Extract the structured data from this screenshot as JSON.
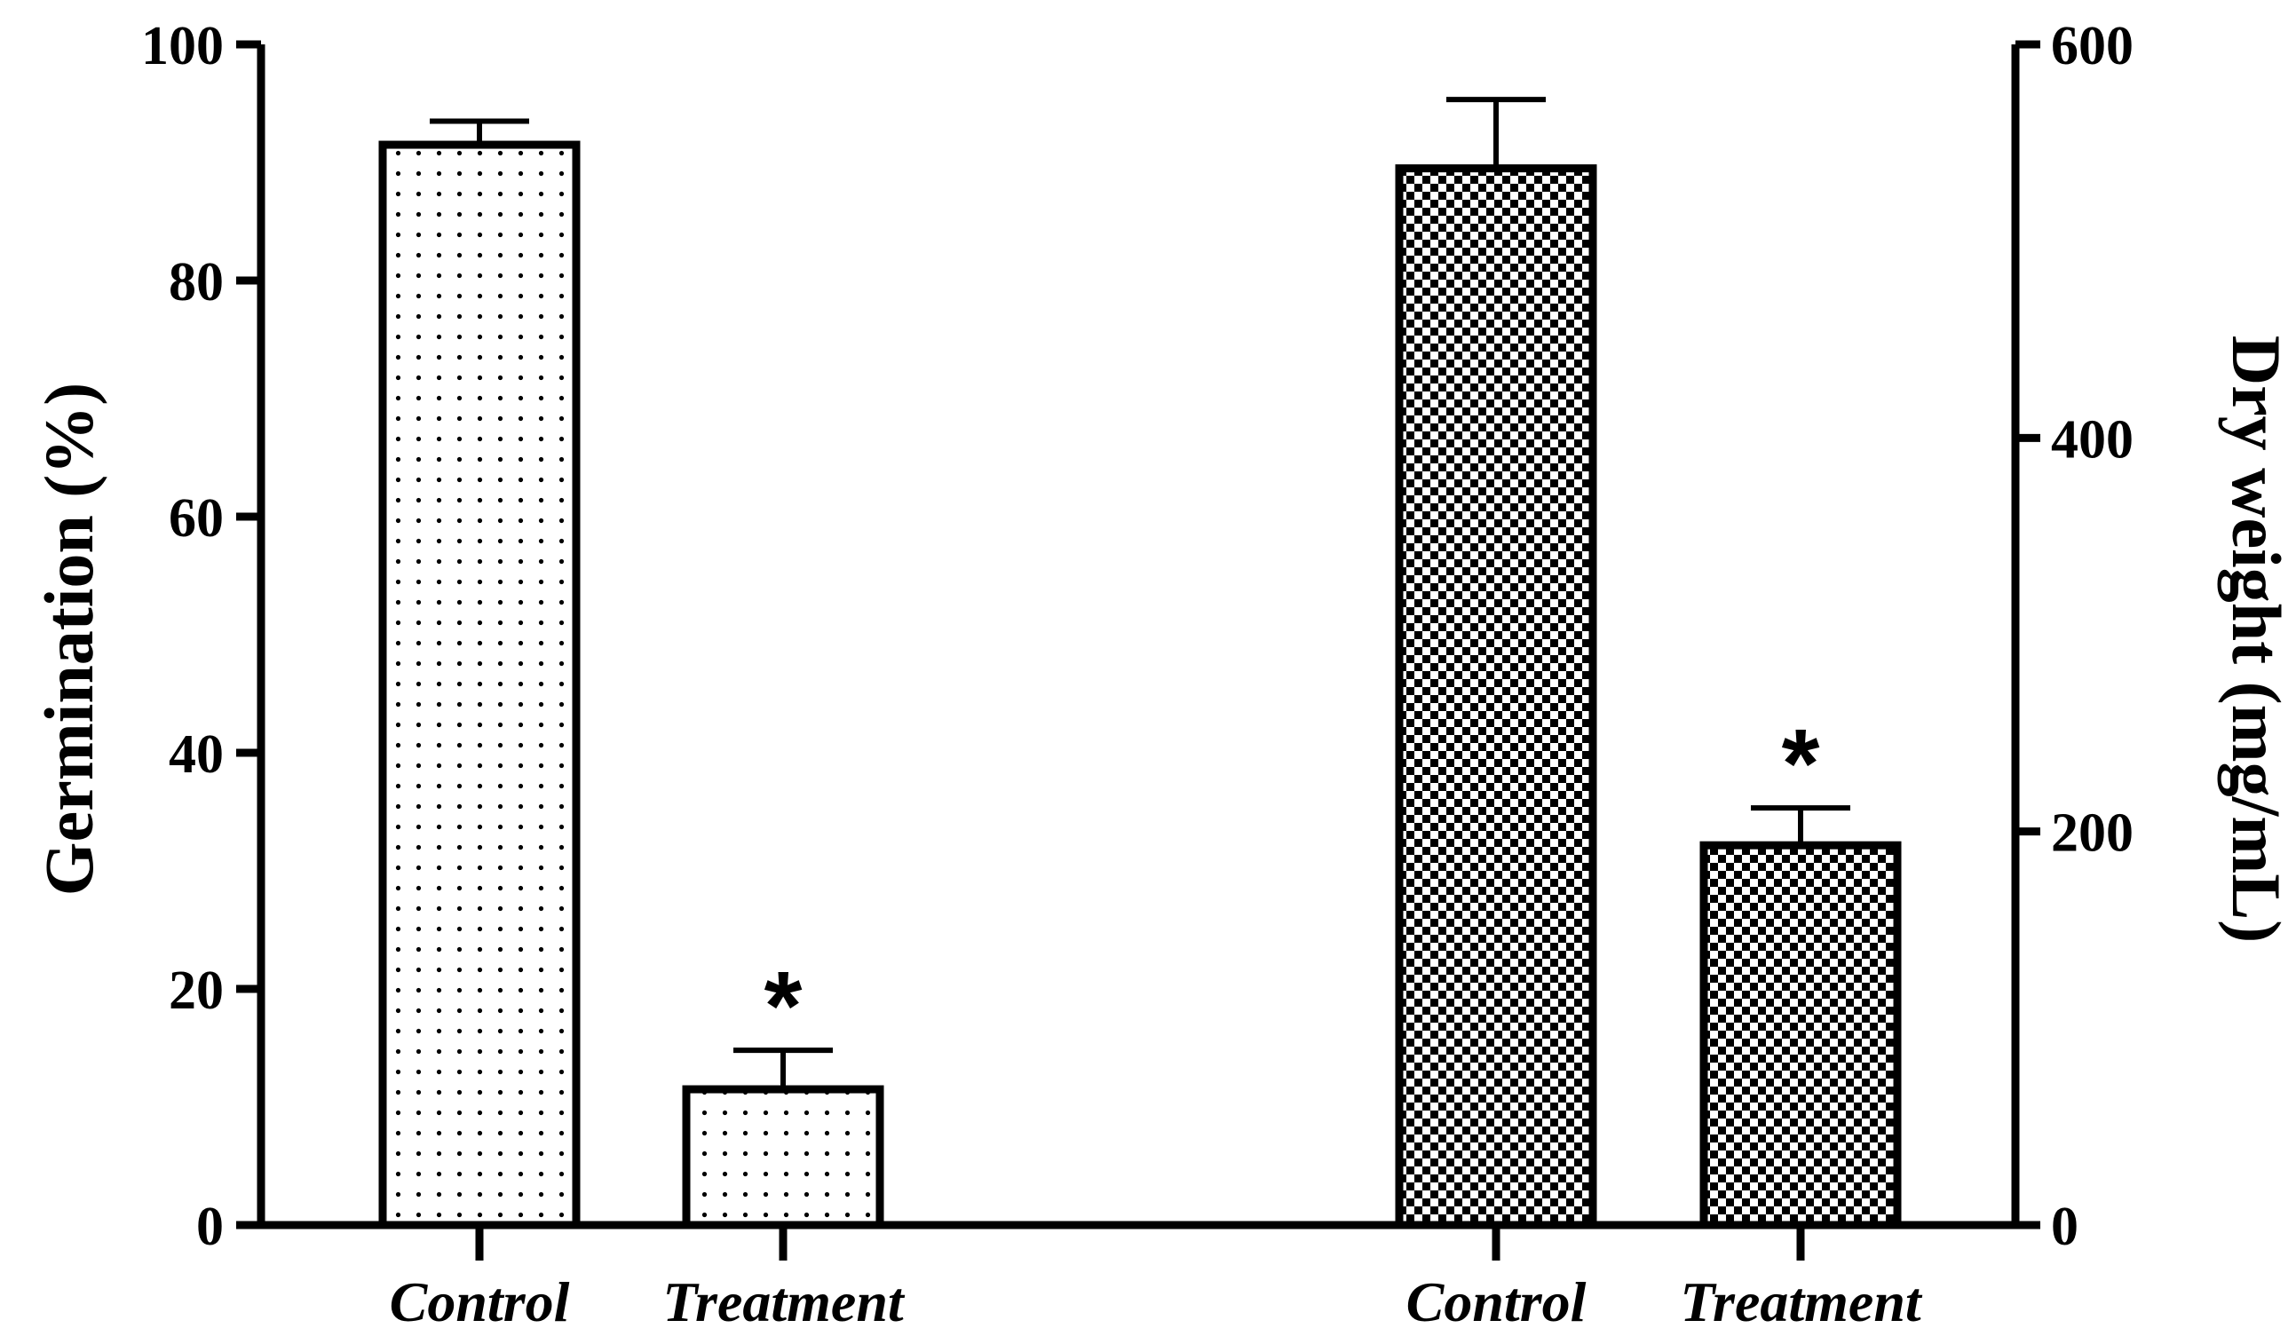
{
  "chart_data": {
    "type": "bar",
    "left_axis": {
      "title": "Germination (%)",
      "ylim": [
        0,
        100
      ],
      "ticks": [
        "0",
        "20",
        "40",
        "60",
        "80",
        "100"
      ]
    },
    "right_axis": {
      "title": "Dry weight (mg/mL)",
      "ylim": [
        0,
        600
      ],
      "ticks": [
        "0",
        "200",
        "400",
        "600"
      ]
    },
    "groups": [
      {
        "name": "Germination (%)",
        "axis": "left",
        "pattern": "dots",
        "bars": [
          {
            "category": "Control",
            "value": 91.5,
            "error": 2.0,
            "annotation": ""
          },
          {
            "category": "Treatment",
            "value": 11.5,
            "error": 3.3,
            "annotation": "*"
          }
        ]
      },
      {
        "name": "Dry weight (mg/mL)",
        "axis": "right",
        "pattern": "checker",
        "bars": [
          {
            "category": "Control",
            "value": 537,
            "error": 35,
            "annotation": ""
          },
          {
            "category": "Treatment",
            "value": 193,
            "error": 19,
            "annotation": "*"
          }
        ]
      }
    ],
    "grid": false,
    "legend": "none"
  }
}
